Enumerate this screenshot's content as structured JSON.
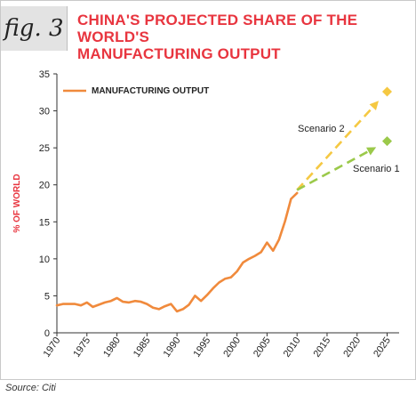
{
  "header": {
    "fig_label": "fig. 3",
    "title_line1": "CHINA'S PROJECTED SHARE OF THE WORLD'S",
    "title_line2": "MANUFACTURING OUTPUT"
  },
  "source": "Source: Citi",
  "colors": {
    "title": "#e8353f",
    "series": "#f08a3c",
    "scenario2": "#f5c842",
    "scenario1": "#9bc94a"
  },
  "chart_data": {
    "type": "line",
    "title": "CHINA'S PROJECTED SHARE OF THE WORLD'S MANUFACTURING OUTPUT",
    "xlabel": "",
    "ylabel": "% OF WORLD",
    "xlim": [
      1970,
      2027
    ],
    "ylim": [
      0,
      35
    ],
    "x_ticks": [
      "1970",
      "1975",
      "1980",
      "1985",
      "1990",
      "1995",
      "2000",
      "2005",
      "2010",
      "2015",
      "2020",
      "2025"
    ],
    "y_ticks": [
      "0",
      "5",
      "10",
      "15",
      "20",
      "25",
      "30",
      "35"
    ],
    "grid": false,
    "legend": "top-left",
    "series": [
      {
        "name": "MANUFACTURING OUTPUT",
        "x": [
          1970,
          1971,
          1972,
          1973,
          1974,
          1975,
          1976,
          1977,
          1978,
          1979,
          1980,
          1981,
          1982,
          1983,
          1984,
          1985,
          1986,
          1987,
          1988,
          1989,
          1990,
          1991,
          1992,
          1993,
          1994,
          1995,
          1996,
          1997,
          1998,
          1999,
          2000,
          2001,
          2002,
          2003,
          2004,
          2005,
          2006,
          2007,
          2008,
          2009,
          2010
        ],
        "values": [
          3.7,
          3.9,
          3.9,
          3.9,
          3.7,
          4.1,
          3.5,
          3.8,
          4.1,
          4.3,
          4.7,
          4.2,
          4.1,
          4.3,
          4.2,
          3.9,
          3.4,
          3.2,
          3.6,
          3.9,
          2.9,
          3.2,
          3.8,
          5.0,
          4.3,
          5.1,
          6.0,
          6.8,
          7.3,
          7.5,
          8.3,
          9.5,
          10.0,
          10.4,
          10.9,
          12.2,
          11.1,
          12.6,
          15.1,
          18.1,
          18.9
        ]
      },
      {
        "name": "Scenario 2",
        "x": [
          2010,
          2025
        ],
        "values": [
          19.3,
          32.6
        ],
        "dashed": true
      },
      {
        "name": "Scenario 1",
        "x": [
          2010,
          2025
        ],
        "values": [
          19.3,
          25.9
        ],
        "dashed": true
      }
    ]
  }
}
